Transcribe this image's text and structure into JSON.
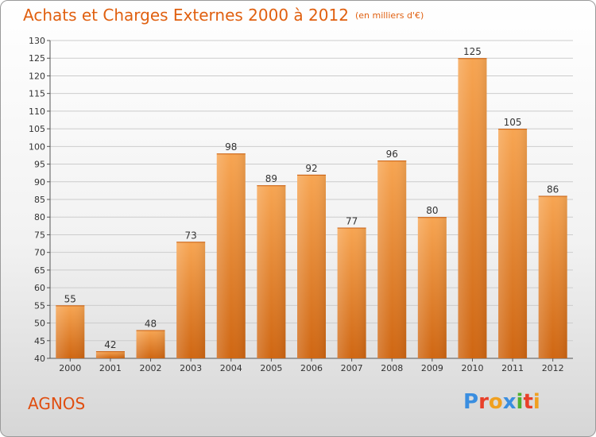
{
  "header": {
    "title": "Achats et Charges Externes 2000 à 2012",
    "unit": "(en milliers d'€)"
  },
  "commune": "AGNOS",
  "logo": {
    "text": "Proxiti",
    "letter_colors": [
      "#3a8ee0",
      "#e8402a",
      "#f0a020",
      "#3a8ee0",
      "#50b030",
      "#e8402a",
      "#f0a020"
    ]
  },
  "chart_data": {
    "type": "bar",
    "title": "Achats et Charges Externes 2000 à 2012",
    "subtitle": "(en milliers d'€)",
    "categories": [
      "2000",
      "2001",
      "2002",
      "2003",
      "2004",
      "2005",
      "2006",
      "2007",
      "2008",
      "2009",
      "2010",
      "2011",
      "2012"
    ],
    "values": [
      55,
      42,
      48,
      73,
      98,
      89,
      92,
      77,
      96,
      80,
      125,
      105,
      86
    ],
    "ylim": [
      40,
      130
    ],
    "yticks": [
      40,
      45,
      50,
      55,
      60,
      65,
      70,
      75,
      80,
      85,
      90,
      95,
      100,
      105,
      110,
      115,
      120,
      125,
      130
    ],
    "grid": true,
    "bar_color": "#f08a2a",
    "data_labels": true
  }
}
